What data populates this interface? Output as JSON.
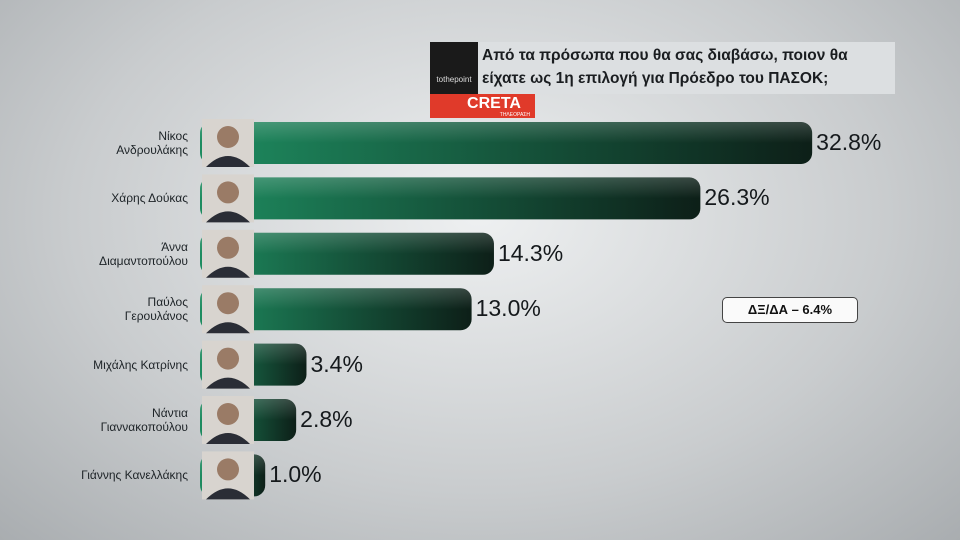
{
  "chart_data": {
    "type": "bar",
    "title": "Από τα πρόσωπα που θα σας διαβάσω, ποιον θα είχατε ως 1η επιλογή για Πρόεδρο του ΠΑΣΟΚ;",
    "categories": [
      "Νίκος\nΑνδρουλάκης",
      "Χάρης Δούκας",
      "Άννα\nΔιαμαντοπούλου",
      "Παύλος\nΓερουλάνος",
      "Μιχάλης Κατρίνης",
      "Νάντια\nΓιαννακοπούλου",
      "Γιάννης Κανελλάκης"
    ],
    "values": [
      32.8,
      26.3,
      14.3,
      13.0,
      3.4,
      2.8,
      1.0
    ],
    "value_labels": [
      "32.8%",
      "26.3%",
      "14.3%",
      "13.0%",
      "3.4%",
      "2.8%",
      "1.0%"
    ],
    "color": "#1e8c60",
    "annotation": "ΔΞ/ΔΑ – 6.4%",
    "logos": {
      "channel": "tothepoint",
      "station": "CRETA",
      "station_sub": "ΤΗΛΕΟΡΑΣΗ"
    }
  }
}
